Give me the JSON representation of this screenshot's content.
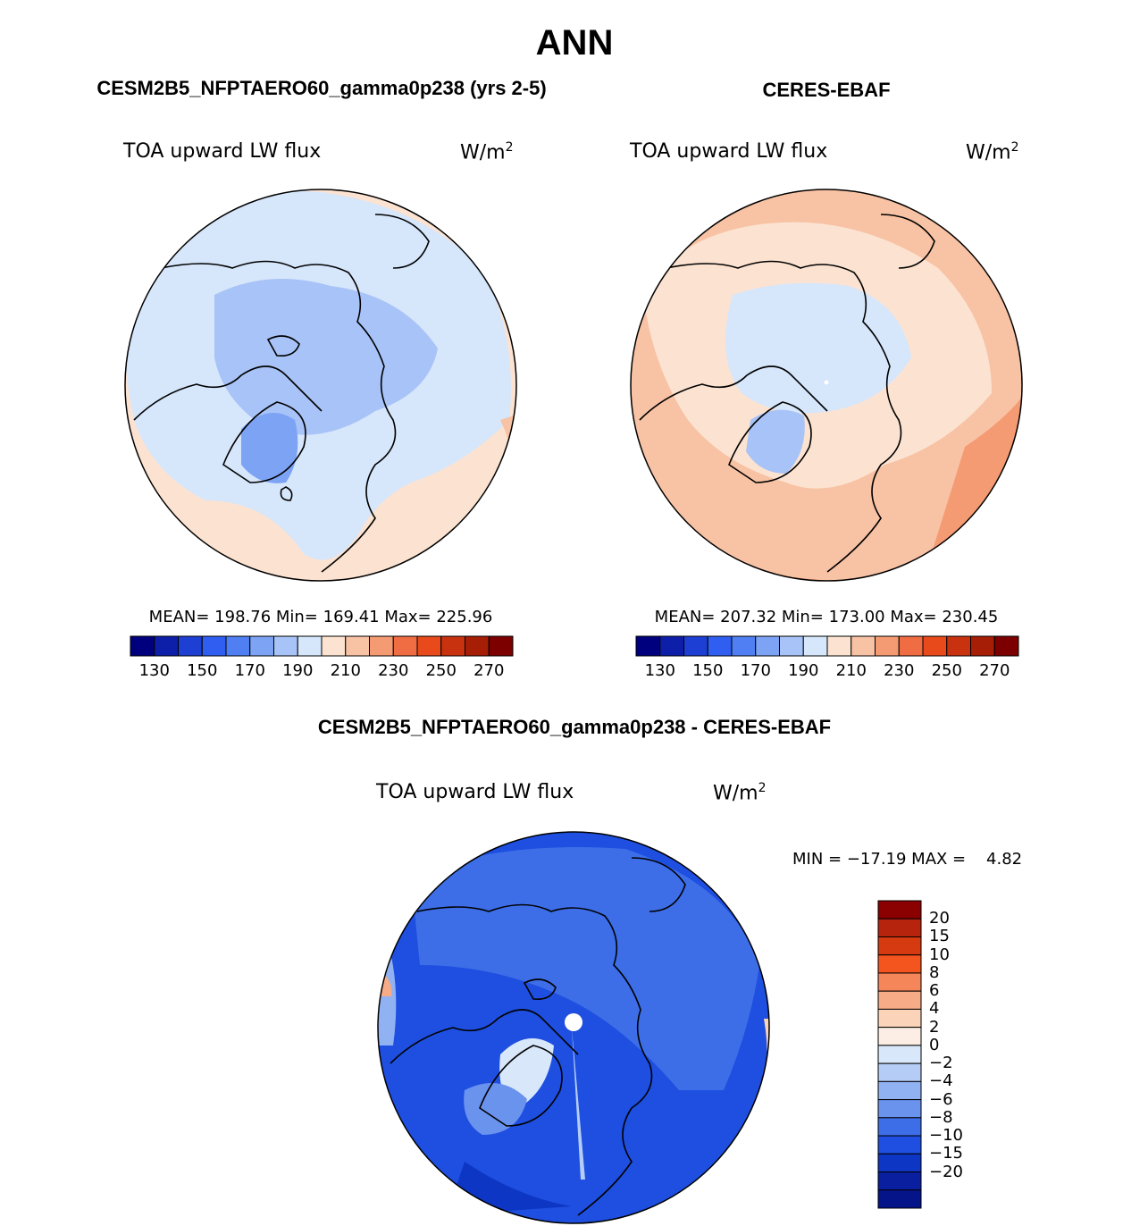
{
  "figure": {
    "title": "ANN"
  },
  "panels": [
    {
      "id": "model",
      "heading": "CESM2B5_NFPTAERO60_gamma0p238 (yrs 2-5)",
      "variable": "TOA upward LW flux",
      "units_base": "W/m",
      "units_exp": "2",
      "stats_text": "MEAN= 198.76   Min= 169.41   Max= 225.96",
      "mean": 198.76,
      "min": 169.41,
      "max": 225.96
    },
    {
      "id": "obs",
      "heading": "CERES-EBAF",
      "variable": "TOA upward LW flux",
      "units_base": "W/m",
      "units_exp": "2",
      "stats_text": "MEAN= 207.32   Min= 173.00   Max= 230.45",
      "mean": 207.32,
      "min": 173.0,
      "max": 230.45
    },
    {
      "id": "diff",
      "heading": "CESM2B5_NFPTAERO60_gamma0p238 - CERES-EBAF",
      "variable": "TOA upward LW flux",
      "units_base": "W/m",
      "units_exp": "2",
      "stats_text": "MIN = −17.19 MAX =    4.82",
      "min": -17.19,
      "max": 4.82
    }
  ],
  "colorbars": {
    "abs": {
      "colors": [
        "#00007f",
        "#0d1fa8",
        "#1e3fd4",
        "#2f5ef0",
        "#4f7ff3",
        "#7da3f5",
        "#a8c3f7",
        "#d6e6fb",
        "#fce3d1",
        "#f8c2a4",
        "#f49b73",
        "#f06c43",
        "#e84a1b",
        "#c8320f",
        "#a61e06",
        "#7d0000"
      ],
      "tick_labels": [
        "130",
        "150",
        "170",
        "190",
        "210",
        "230",
        "250",
        "270"
      ],
      "tick_values": [
        130,
        150,
        170,
        190,
        210,
        230,
        250,
        270
      ]
    },
    "diff": {
      "colors_top_to_bottom": [
        "#8b0000",
        "#b7240e",
        "#d63a10",
        "#f4551f",
        "#f4865a",
        "#f7ab86",
        "#fbd3b8",
        "#fceee4",
        "#d9e7fb",
        "#b5cdf6",
        "#91b2f2",
        "#6a93ee",
        "#3d6ee8",
        "#1e4fe0",
        "#0e36c4",
        "#0a1fa0",
        "#06148a"
      ],
      "tick_labels": [
        "20",
        "15",
        "10",
        "8",
        "6",
        "4",
        "2",
        "0",
        "−2",
        "−4",
        "−6",
        "−8",
        "−10",
        "−15",
        "−20"
      ]
    }
  }
}
